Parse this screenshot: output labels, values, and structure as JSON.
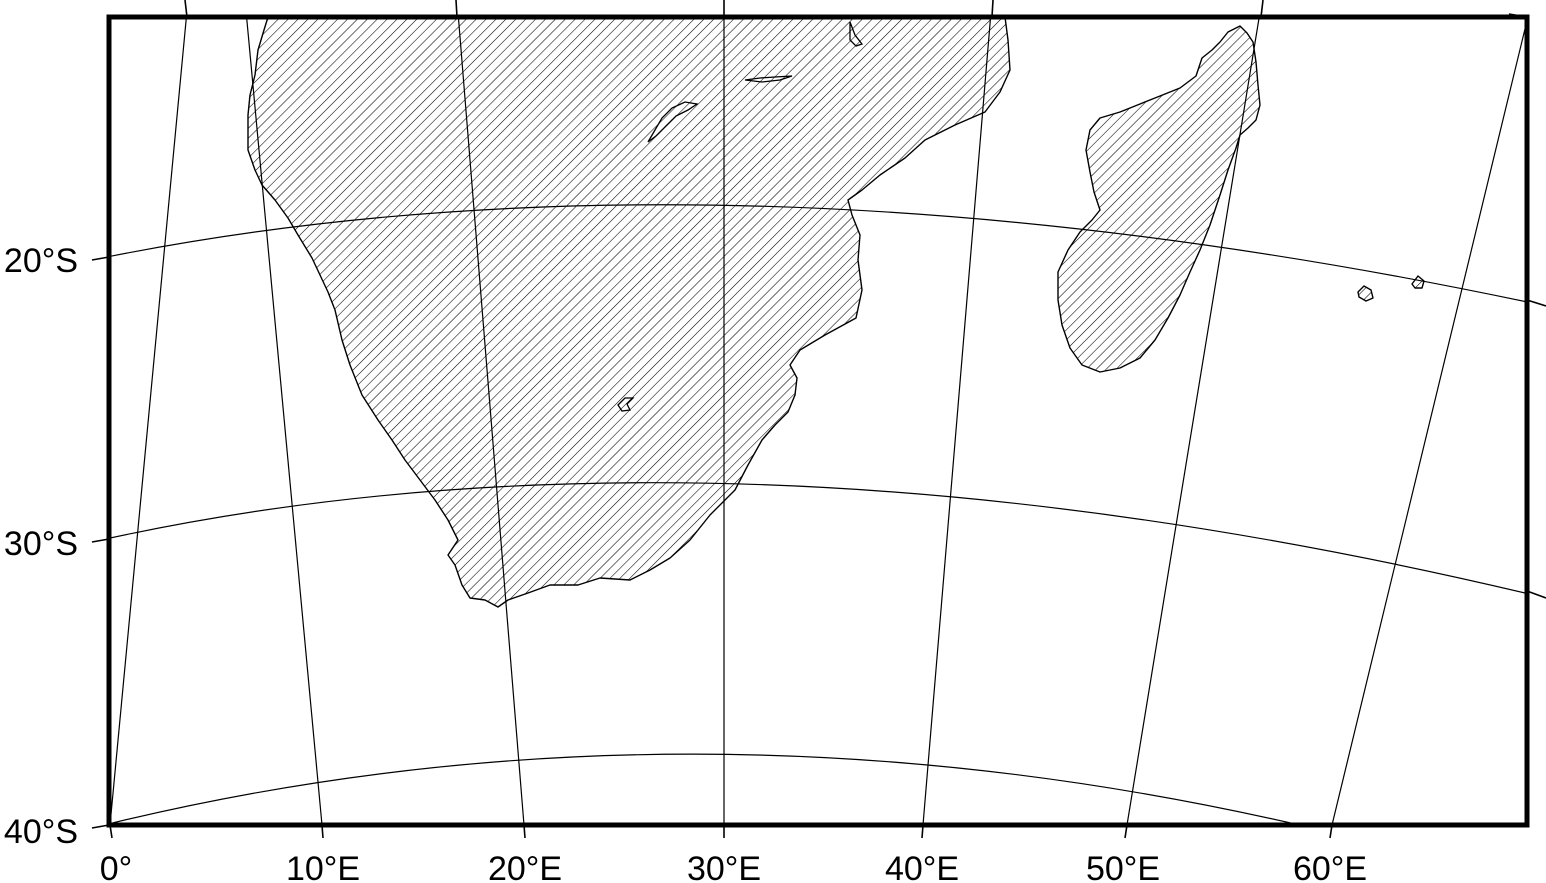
{
  "map": {
    "projection": "conic",
    "land_fill": "diagonal-hatch",
    "colors": {
      "ink": "#000000",
      "background": "#ffffff"
    },
    "lon_labels": [
      "0°",
      "10°E",
      "20°E",
      "30°E",
      "40°E",
      "50°E",
      "60°E"
    ],
    "lat_labels": [
      "20°S",
      "30°S",
      "40°S"
    ],
    "features": [
      "Southern Africa",
      "Madagascar",
      "Mascarene Islands"
    ]
  }
}
